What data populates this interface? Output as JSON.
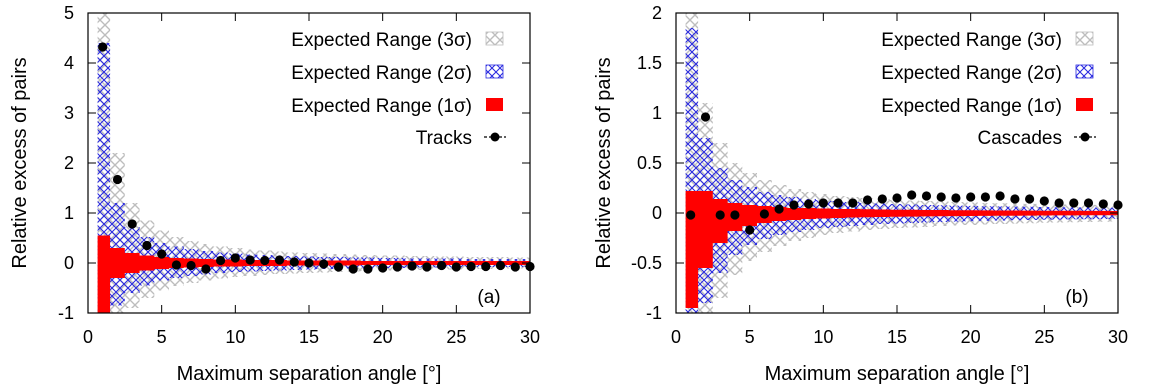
{
  "legend_labels": [
    "Expected Range (3σ)",
    "Expected Range (2σ)",
    "Expected Range (1σ)"
  ],
  "colors": {
    "band3": "#bdbdbd",
    "band2": "#2a2ae0",
    "band1": "#ff0000",
    "points": "#000000"
  },
  "chart_data": [
    {
      "type": "scatter",
      "panel_label": "(a)",
      "xlabel": "Maximum separation angle [°]",
      "ylabel": "Relative excess of pairs",
      "xlim": [
        0,
        30
      ],
      "ylim": [
        -1,
        5
      ],
      "xticks": [
        0,
        5,
        10,
        15,
        20,
        25,
        30
      ],
      "yticks": [
        -1,
        0,
        1,
        2,
        3,
        4,
        5
      ],
      "grid": false,
      "legend_position": "top-right",
      "series": [
        {
          "name": "Tracks",
          "x": [
            1,
            2,
            3,
            4,
            5,
            6,
            7,
            8,
            9,
            10,
            11,
            12,
            13,
            14,
            15,
            16,
            17,
            18,
            19,
            20,
            21,
            22,
            23,
            24,
            25,
            26,
            27,
            28,
            29,
            30
          ],
          "y": [
            4.32,
            1.67,
            0.78,
            0.35,
            0.18,
            -0.04,
            -0.05,
            -0.12,
            0.05,
            0.1,
            0.06,
            0.05,
            0.06,
            0.02,
            0.0,
            -0.02,
            -0.08,
            -0.12,
            -0.12,
            -0.1,
            -0.08,
            -0.06,
            -0.08,
            -0.05,
            -0.08,
            -0.07,
            -0.07,
            -0.05,
            -0.08,
            -0.07
          ]
        }
      ],
      "bands": {
        "x": [
          1,
          2,
          3,
          4,
          5,
          6,
          7,
          8,
          9,
          10,
          11,
          12,
          13,
          14,
          15,
          16,
          17,
          18,
          19,
          20,
          21,
          22,
          23,
          24,
          25,
          26,
          27,
          28,
          29,
          30
        ],
        "sigma1_upper": [
          0.55,
          0.3,
          0.2,
          0.15,
          0.12,
          0.1,
          0.09,
          0.08,
          0.07,
          0.07,
          0.06,
          0.06,
          0.06,
          0.05,
          0.05,
          0.05,
          0.05,
          0.05,
          0.04,
          0.04,
          0.04,
          0.04,
          0.04,
          0.04,
          0.04,
          0.04,
          0.04,
          0.04,
          0.04,
          0.04
        ],
        "sigma1_lower": [
          -1.0,
          -0.3,
          -0.2,
          -0.15,
          -0.12,
          -0.1,
          -0.09,
          -0.08,
          -0.07,
          -0.07,
          -0.06,
          -0.06,
          -0.06,
          -0.05,
          -0.05,
          -0.05,
          -0.05,
          -0.05,
          -0.04,
          -0.04,
          -0.04,
          -0.04,
          -0.04,
          -0.04,
          -0.04,
          -0.04,
          -0.04,
          -0.04,
          -0.04,
          -0.04
        ],
        "sigma2_upper": [
          4.4,
          1.2,
          0.72,
          0.52,
          0.4,
          0.33,
          0.28,
          0.24,
          0.21,
          0.19,
          0.17,
          0.16,
          0.15,
          0.14,
          0.13,
          0.12,
          0.12,
          0.11,
          0.11,
          0.1,
          0.1,
          0.09,
          0.09,
          0.09,
          0.09,
          0.08,
          0.08,
          0.08,
          0.08,
          0.08
        ],
        "sigma2_lower": [
          -1.0,
          -0.85,
          -0.6,
          -0.45,
          -0.35,
          -0.3,
          -0.26,
          -0.23,
          -0.2,
          -0.18,
          -0.17,
          -0.16,
          -0.15,
          -0.14,
          -0.13,
          -0.12,
          -0.12,
          -0.11,
          -0.11,
          -0.1,
          -0.1,
          -0.09,
          -0.09,
          -0.09,
          -0.09,
          -0.08,
          -0.08,
          -0.08,
          -0.08,
          -0.08
        ],
        "sigma3_upper": [
          5.0,
          2.2,
          1.2,
          0.85,
          0.65,
          0.52,
          0.44,
          0.38,
          0.33,
          0.3,
          0.27,
          0.25,
          0.23,
          0.21,
          0.2,
          0.19,
          0.18,
          0.17,
          0.16,
          0.15,
          0.15,
          0.14,
          0.14,
          0.13,
          0.13,
          0.12,
          0.12,
          0.12,
          0.11,
          0.11
        ],
        "sigma3_lower": [
          -1.0,
          -1.0,
          -0.9,
          -0.7,
          -0.55,
          -0.46,
          -0.4,
          -0.35,
          -0.31,
          -0.28,
          -0.26,
          -0.24,
          -0.22,
          -0.21,
          -0.2,
          -0.19,
          -0.18,
          -0.17,
          -0.16,
          -0.15,
          -0.15,
          -0.14,
          -0.14,
          -0.13,
          -0.13,
          -0.12,
          -0.12,
          -0.12,
          -0.11,
          -0.11
        ]
      }
    },
    {
      "type": "scatter",
      "panel_label": "(b)",
      "xlabel": "Maximum separation angle [°]",
      "ylabel": "Relative excess of pairs",
      "xlim": [
        0,
        30
      ],
      "ylim": [
        -1,
        2
      ],
      "xticks": [
        0,
        5,
        10,
        15,
        20,
        25,
        30
      ],
      "yticks": [
        -1,
        -0.5,
        0,
        0.5,
        1,
        1.5,
        2
      ],
      "grid": false,
      "legend_position": "top-right",
      "series": [
        {
          "name": "Cascades",
          "x": [
            1,
            2,
            3,
            4,
            5,
            6,
            7,
            8,
            9,
            10,
            11,
            12,
            13,
            14,
            15,
            16,
            17,
            18,
            19,
            20,
            21,
            22,
            23,
            24,
            25,
            26,
            27,
            28,
            29,
            30
          ],
          "y": [
            -0.02,
            0.96,
            -0.02,
            -0.02,
            -0.17,
            -0.01,
            0.04,
            0.08,
            0.09,
            0.1,
            0.1,
            0.1,
            0.13,
            0.14,
            0.15,
            0.18,
            0.17,
            0.16,
            0.15,
            0.16,
            0.16,
            0.17,
            0.14,
            0.14,
            0.12,
            0.1,
            0.1,
            0.1,
            0.09,
            0.08
          ]
        }
      ],
      "bands": {
        "x": [
          1,
          2,
          3,
          4,
          5,
          6,
          7,
          8,
          9,
          10,
          11,
          12,
          13,
          14,
          15,
          16,
          17,
          18,
          19,
          20,
          21,
          22,
          23,
          24,
          25,
          26,
          27,
          28,
          29,
          30
        ],
        "sigma1_upper": [
          0.22,
          0.22,
          0.14,
          0.1,
          0.08,
          0.07,
          0.06,
          0.05,
          0.05,
          0.045,
          0.04,
          0.04,
          0.037,
          0.035,
          0.033,
          0.032,
          0.03,
          0.03,
          0.028,
          0.027,
          0.026,
          0.025,
          0.025,
          0.024,
          0.023,
          0.022,
          0.022,
          0.021,
          0.021,
          0.02
        ],
        "sigma1_lower": [
          -0.95,
          -0.55,
          -0.3,
          -0.18,
          -0.13,
          -0.1,
          -0.08,
          -0.07,
          -0.06,
          -0.055,
          -0.05,
          -0.045,
          -0.042,
          -0.04,
          -0.038,
          -0.036,
          -0.034,
          -0.032,
          -0.031,
          -0.03,
          -0.029,
          -0.028,
          -0.027,
          -0.026,
          -0.025,
          -0.024,
          -0.024,
          -0.023,
          -0.022,
          -0.022
        ],
        "sigma2_upper": [
          1.85,
          0.75,
          0.45,
          0.33,
          0.26,
          0.21,
          0.18,
          0.16,
          0.14,
          0.13,
          0.12,
          0.11,
          0.1,
          0.095,
          0.09,
          0.085,
          0.08,
          0.077,
          0.074,
          0.071,
          0.068,
          0.066,
          0.064,
          0.062,
          0.06,
          0.058,
          0.056,
          0.055,
          0.054,
          0.052
        ],
        "sigma2_lower": [
          -1.0,
          -0.9,
          -0.6,
          -0.42,
          -0.32,
          -0.26,
          -0.22,
          -0.19,
          -0.17,
          -0.15,
          -0.14,
          -0.13,
          -0.12,
          -0.11,
          -0.105,
          -0.1,
          -0.095,
          -0.09,
          -0.086,
          -0.082,
          -0.079,
          -0.076,
          -0.073,
          -0.07,
          -0.068,
          -0.066,
          -0.064,
          -0.062,
          -0.06,
          -0.058
        ],
        "sigma3_upper": [
          2.0,
          1.1,
          0.7,
          0.5,
          0.4,
          0.33,
          0.28,
          0.24,
          0.21,
          0.19,
          0.17,
          0.16,
          0.15,
          0.14,
          0.13,
          0.125,
          0.12,
          0.115,
          0.11,
          0.105,
          0.1,
          0.097,
          0.094,
          0.091,
          0.088,
          0.085,
          0.083,
          0.081,
          0.079,
          0.077
        ],
        "sigma3_lower": [
          -1.0,
          -1.0,
          -0.85,
          -0.62,
          -0.48,
          -0.39,
          -0.33,
          -0.28,
          -0.25,
          -0.22,
          -0.2,
          -0.185,
          -0.17,
          -0.16,
          -0.15,
          -0.145,
          -0.14,
          -0.13,
          -0.125,
          -0.12,
          -0.115,
          -0.11,
          -0.106,
          -0.102,
          -0.098,
          -0.095,
          -0.092,
          -0.09,
          -0.087,
          -0.085
        ]
      }
    }
  ]
}
